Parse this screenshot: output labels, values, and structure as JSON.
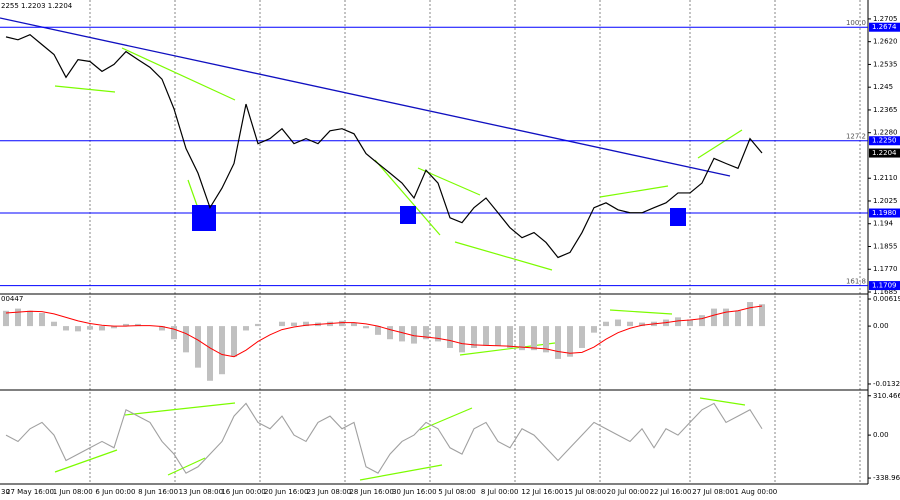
{
  "chart_data": [
    {
      "type": "price",
      "title": "2255 1.2203 1.2204",
      "series": [
        {
          "color": "#000000",
          "values": [
            1.2638,
            1.2627,
            1.2646,
            1.2609,
            1.2572,
            1.2487,
            1.2553,
            1.2546,
            1.2509,
            1.2535,
            1.2583,
            1.2553,
            1.2524,
            1.248,
            1.2369,
            1.2221,
            1.2129,
            1.2,
            1.2073,
            1.2165,
            1.2387,
            1.2239,
            1.2258,
            1.2295,
            1.2239,
            1.2258,
            1.2239,
            1.2287,
            1.2295,
            1.2276,
            1.2202,
            1.2165,
            1.2129,
            1.2092,
            1.2036,
            1.214,
            1.2092,
            1.1962,
            1.1944,
            1.2,
            1.2036,
            1.1981,
            1.1925,
            1.1888,
            1.1907,
            1.187,
            1.1814,
            1.1833,
            1.1907,
            1.2,
            1.2018,
            1.1992,
            1.1981,
            1.1981,
            1.2,
            1.2018,
            1.2055,
            1.2055,
            1.2092,
            1.2184,
            1.2165,
            1.2147,
            1.2258,
            1.2204
          ]
        }
      ],
      "ylim": [
        1.1685,
        1.2757
      ],
      "yticks": [
        1.2705,
        {
          "value": 1.262,
          "label": "1.2620"
        },
        1.2535,
        1.245,
        1.2365,
        {
          "value": 1.228,
          "label": "1.2280"
        },
        {
          "value": 1.211,
          "label": "1.2110"
        },
        1.2025,
        1.194,
        1.1855,
        {
          "value": 1.177,
          "label": "1.1770"
        },
        1.1685
      ],
      "levels": [
        1.2674,
        1.225,
        1.198,
        1.1709
      ],
      "level_labels": [
        "1.2674",
        "1.2250",
        "1.1980",
        "1.1709"
      ],
      "level_names": [
        "100.0",
        "127.2",
        null,
        "161.8"
      ],
      "level_color": "#0000ff",
      "last_price": 1.2204,
      "xticks": [
        "30",
        "27 May 16:00",
        "1 Jun 08:00",
        "6 Jun 00:00",
        "8 Jun 16:00",
        "13 Jun 08:00",
        "16 Jun 00:00",
        "20 Jun 16:00",
        "23 Jun 08:00",
        "28 Jun 16:00",
        "30 Jun 16:00",
        "5 Jul 08:00",
        "8 Jul 00:00",
        "12 Jul 16:00",
        "15 Jul 08:00",
        "20 Jul 00:00",
        "22 Jul 16:00",
        "27 Jul 08:00",
        "1 Aug 00:00"
      ]
    },
    {
      "type": "macd",
      "title": "00447",
      "series": [
        {
          "color": "#c0c0c0",
          "values": [
            0.0035,
            0.004,
            0.0035,
            0.003,
            0.001,
            -0.001,
            -0.0012,
            -0.0008,
            -0.001,
            -0.0005,
            0.0005,
            0.0005,
            0,
            -0.001,
            -0.003,
            -0.006,
            -0.0095,
            -0.0125,
            -0.011,
            -0.007,
            -0.001,
            0.0005,
            0,
            0.001,
            0.0008,
            0.001,
            0.0008,
            0.001,
            0.0012,
            0.0008,
            -0.0005,
            -0.002,
            -0.003,
            -0.0035,
            -0.004,
            -0.003,
            -0.0035,
            -0.005,
            -0.006,
            -0.005,
            -0.0045,
            -0.0045,
            -0.005,
            -0.0055,
            -0.0055,
            -0.006,
            -0.0075,
            -0.007,
            -0.005,
            -0.0015,
            0.001,
            0.0015,
            0.001,
            0.0008,
            0.001,
            0.0015,
            0.002,
            0.0015,
            0.0025,
            0.004,
            0.004,
            0.0035,
            0.0055,
            0.005
          ]
        },
        {
          "color": "#ff0000",
          "values": [
            0.003,
            0.0032,
            0.0034,
            0.0033,
            0.0028,
            0.002,
            0.0012,
            0.0006,
            0.0002,
            0,
            0,
            0.0001,
            0.0001,
            -0.0001,
            -0.0007,
            -0.0017,
            -0.0032,
            -0.005,
            -0.0065,
            -0.007,
            -0.0055,
            -0.0035,
            -0.002,
            -0.0008,
            -0.0002,
            0.0002,
            0.0004,
            0.0006,
            0.0008,
            0.0008,
            0.0005,
            0,
            -0.0008,
            -0.0015,
            -0.0022,
            -0.0025,
            -0.0028,
            -0.0033,
            -0.004,
            -0.0043,
            -0.0044,
            -0.0045,
            -0.0046,
            -0.0048,
            -0.005,
            -0.0052,
            -0.0058,
            -0.0062,
            -0.006,
            -0.0048,
            -0.003,
            -0.0015,
            -0.0005,
            0.0002,
            0.0005,
            0.0008,
            0.0012,
            0.0014,
            0.0017,
            0.0025,
            0.0032,
            0.0035,
            0.0042,
            0.0046
          ]
        }
      ],
      "ylim": [
        -0.01415,
        0.00688
      ],
      "yticks": [
        0.00619,
        {
          "value": 0,
          "label": "0.00"
        },
        -0.01323
      ]
    },
    {
      "type": "line",
      "series": [
        {
          "color": "#a0a0a0",
          "values": [
            0,
            -50,
            50,
            100,
            0,
            -200,
            -150,
            -100,
            -50,
            -100,
            200,
            150,
            100,
            -50,
            -150,
            -300,
            -250,
            -150,
            -50,
            150,
            250,
            100,
            50,
            150,
            0,
            -50,
            100,
            150,
            50,
            100,
            -250,
            -300,
            -150,
            -50,
            0,
            100,
            50,
            -100,
            -150,
            50,
            100,
            -50,
            -100,
            50,
            0,
            -100,
            -200,
            -100,
            0,
            100,
            50,
            0,
            -50,
            50,
            -100,
            50,
            0,
            100,
            200,
            250,
            100,
            150,
            200,
            50
          ]
        }
      ],
      "ylim": [
        -370,
        348
      ],
      "yticks": [
        310.4666,
        {
          "value": 0,
          "label": "0.00"
        },
        {
          "value": -338.969,
          "label": "-338.9690"
        }
      ]
    }
  ]
}
